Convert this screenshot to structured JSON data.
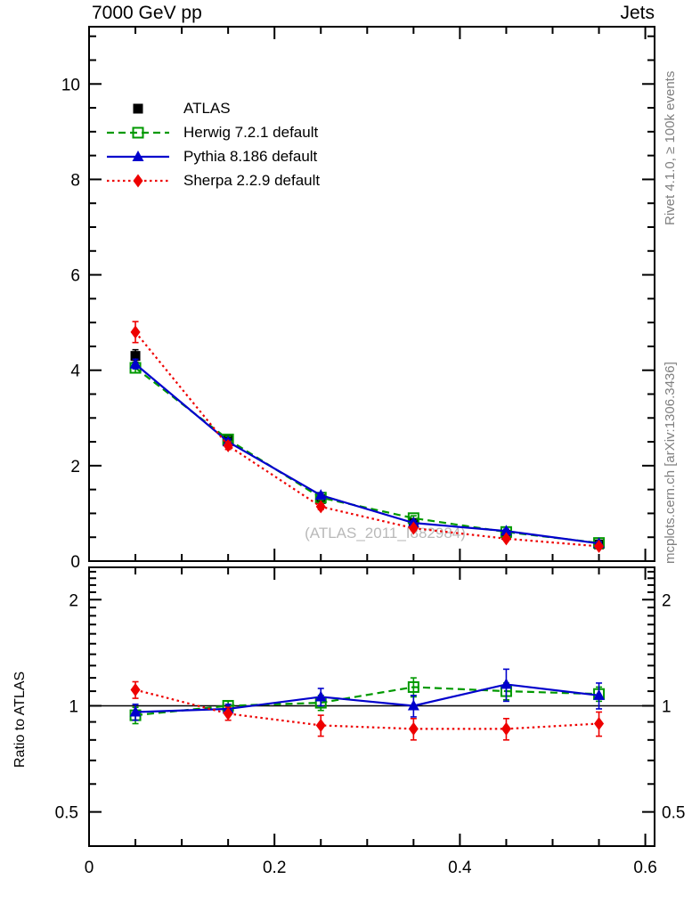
{
  "title": {
    "left": "7000 GeV pp",
    "right": "Jets"
  },
  "side_text": {
    "top": "Rivet 4.1.0, ≥ 100k events",
    "bottom": "mcplots.cern.ch [arXiv:1306.3436]"
  },
  "watermark": "(ATLAS_2011_I882984)",
  "axes": {
    "ratio_ylabel": "Ratio to ATLAS"
  },
  "colors": {
    "atlas": "#000000",
    "herwig": "#009900",
    "pythia": "#0000cc",
    "sherpa": "#ee0000",
    "frame": "#000000",
    "watermark": "#b9b9b9",
    "side_text": "#808080"
  },
  "legend": [
    {
      "key": "atlas",
      "label": "ATLAS",
      "color": "#000000",
      "line": "none",
      "marker": "square-filled"
    },
    {
      "key": "herwig",
      "label": "Herwig 7.2.1 default",
      "color": "#009900",
      "line": "dashed",
      "marker": "square-open"
    },
    {
      "key": "pythia",
      "label": "Pythia 8.186 default",
      "color": "#0000cc",
      "line": "solid",
      "marker": "triangle-filled"
    },
    {
      "key": "sherpa",
      "label": "Sherpa 2.2.9 default",
      "color": "#ee0000",
      "line": "dotted",
      "marker": "diamond-filled"
    }
  ],
  "chart_data": {
    "type": "line",
    "title": "7000 GeV pp",
    "right_title": "Jets",
    "x": [
      0.05,
      0.15,
      0.25,
      0.35,
      0.45,
      0.55
    ],
    "xlim": [
      0,
      0.61
    ],
    "xticks": {
      "major": [
        0,
        0.2,
        0.4,
        0.6
      ],
      "labels": [
        "0",
        "0.2",
        "0.4",
        "0.6"
      ],
      "minor_step": 0.05
    },
    "grid": false,
    "legend_position": "top-left",
    "main_panel": {
      "scale": "linear",
      "ylim": [
        0,
        11.2
      ],
      "yticks": {
        "major": [
          0,
          2,
          4,
          6,
          8,
          10
        ],
        "labels": [
          "0",
          "2",
          "4",
          "6",
          "8",
          "10"
        ],
        "minor_step": 0.5
      },
      "series": [
        {
          "key": "atlas",
          "name": "ATLAS",
          "values": [
            4.3,
            2.55,
            1.3,
            0.8,
            0.55,
            0.35
          ],
          "errors": [
            0.13,
            0.07,
            0.05,
            0.04,
            0.03,
            0.03
          ]
        },
        {
          "key": "herwig",
          "name": "Herwig 7.2.1 default",
          "values": [
            4.05,
            2.55,
            1.33,
            0.9,
            0.61,
            0.38
          ],
          "errors": [
            0.1,
            0.06,
            0.05,
            0.05,
            0.04,
            0.03
          ]
        },
        {
          "key": "pythia",
          "name": "Pythia 8.186 default",
          "values": [
            4.13,
            2.5,
            1.38,
            0.8,
            0.63,
            0.37
          ],
          "errors": [
            0.1,
            0.06,
            0.05,
            0.05,
            0.04,
            0.03
          ]
        },
        {
          "key": "sherpa",
          "name": "Sherpa 2.2.9 default",
          "values": [
            4.8,
            2.42,
            1.14,
            0.69,
            0.47,
            0.31
          ],
          "errors": [
            0.22,
            0.08,
            0.06,
            0.05,
            0.04,
            0.03
          ]
        }
      ]
    },
    "ratio_panel": {
      "scale": "log",
      "ylim": [
        0.4,
        2.47
      ],
      "reference_line": 1,
      "yticks": {
        "major": [
          0.5,
          1,
          2
        ],
        "labels": [
          "0.5",
          "1",
          "2"
        ],
        "minor": [
          0.4,
          0.6,
          0.7,
          0.8,
          0.9,
          1.1,
          1.2,
          1.3,
          1.4,
          1.5,
          1.6,
          1.7,
          1.8,
          1.9,
          2.1,
          2.2,
          2.3,
          2.4
        ]
      },
      "series": [
        {
          "key": "herwig",
          "name": "Herwig 7.2.1 default",
          "values": [
            0.94,
            1.0,
            1.02,
            1.13,
            1.1,
            1.08
          ],
          "errors": [
            0.05,
            0.03,
            0.05,
            0.07,
            0.06,
            0.05
          ]
        },
        {
          "key": "pythia",
          "name": "Pythia 8.186 default",
          "values": [
            0.96,
            0.98,
            1.06,
            1.0,
            1.15,
            1.07
          ],
          "errors": [
            0.05,
            0.03,
            0.06,
            0.07,
            0.12,
            0.09
          ]
        },
        {
          "key": "sherpa",
          "name": "Sherpa 2.2.9 default",
          "values": [
            1.11,
            0.95,
            0.88,
            0.86,
            0.86,
            0.89
          ],
          "errors": [
            0.06,
            0.04,
            0.06,
            0.06,
            0.06,
            0.07
          ]
        }
      ]
    }
  }
}
